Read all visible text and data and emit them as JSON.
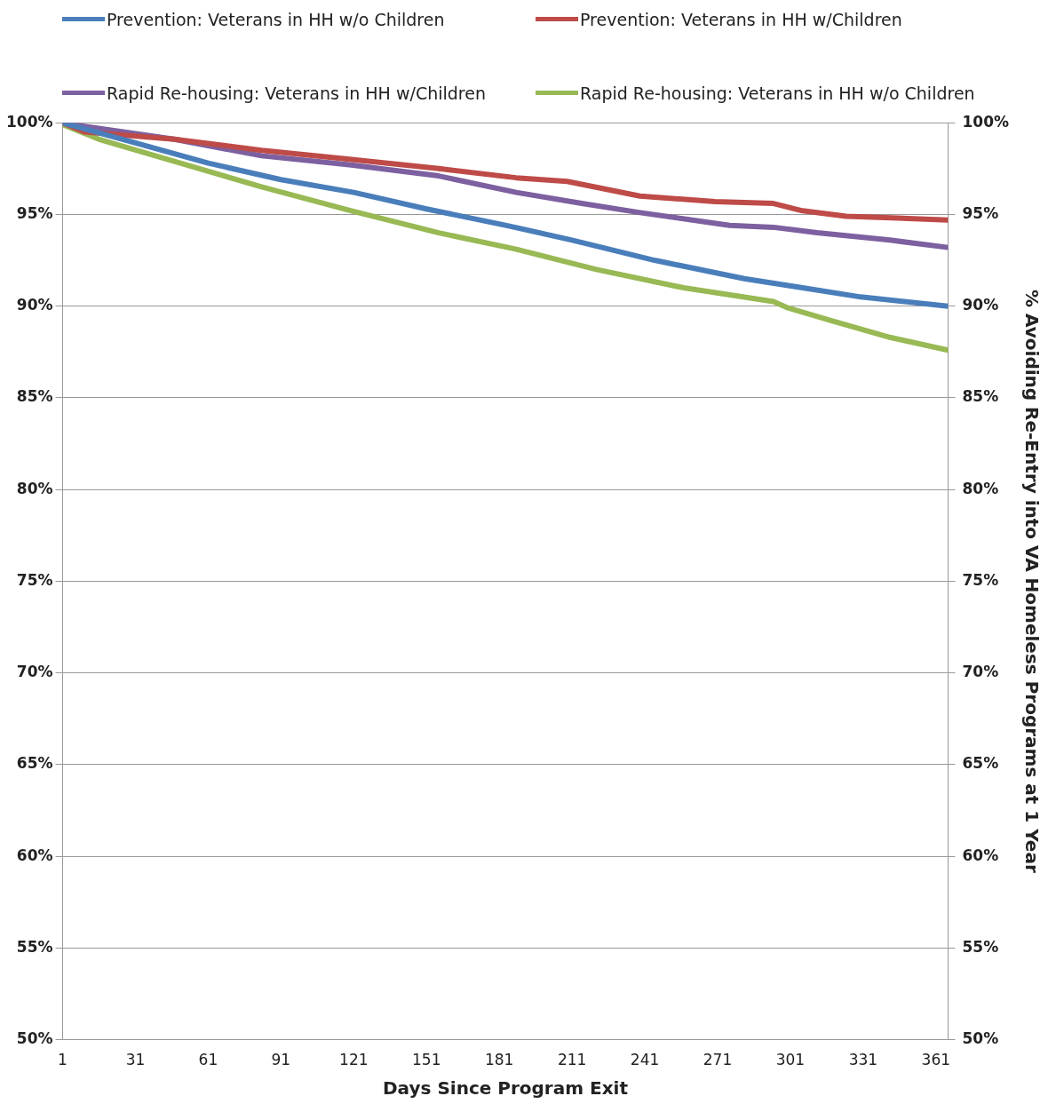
{
  "chart_data": {
    "type": "line",
    "xlabel": "Days Since Program Exit",
    "y2label": "% Avoiding Re-Entry into VA Homeless Programs at 1 Year",
    "legend": "top",
    "marker": "none",
    "line_style": "solid",
    "grid": "y",
    "xlim": [
      1,
      366
    ],
    "xticks": [
      1,
      31,
      61,
      91,
      121,
      151,
      181,
      211,
      241,
      271,
      301,
      331,
      361
    ],
    "ylim": [
      50,
      100
    ],
    "yticks": [
      {
        "value": 50,
        "label": "50%"
      },
      {
        "value": 55,
        "label": "55%"
      },
      {
        "value": 60,
        "label": "60%"
      },
      {
        "value": 65,
        "label": "65%"
      },
      {
        "value": 70,
        "label": "70%"
      },
      {
        "value": 75,
        "label": "75%"
      },
      {
        "value": 80,
        "label": "80%"
      },
      {
        "value": 85,
        "label": "85%"
      },
      {
        "value": 90,
        "label": "90%"
      },
      {
        "value": 95,
        "label": "95%"
      },
      {
        "value": 100,
        "label": "100%"
      }
    ],
    "y2lim": [
      50,
      100
    ],
    "y2ticks": [
      {
        "value": 50,
        "label": "50%"
      },
      {
        "value": 55,
        "label": "55%"
      },
      {
        "value": 60,
        "label": "60%"
      },
      {
        "value": 65,
        "label": "65%"
      },
      {
        "value": 70,
        "label": "70%"
      },
      {
        "value": 75,
        "label": "75%"
      },
      {
        "value": 80,
        "label": "80%"
      },
      {
        "value": 85,
        "label": "85%"
      },
      {
        "value": 90,
        "label": "90%"
      },
      {
        "value": 95,
        "label": "95%"
      },
      {
        "value": 100,
        "label": "100%"
      }
    ],
    "series": [
      {
        "name": "Prevention: Veterans in HH w/o Children",
        "color": "#4a7ebb",
        "x": [
          1,
          31,
          61,
          91,
          121,
          151,
          184,
          211,
          245,
          282,
          306,
          330,
          366
        ],
        "values": [
          100,
          98.9,
          97.8,
          96.9,
          96.2,
          95.3,
          94.4,
          93.6,
          92.5,
          91.5,
          91.0,
          90.5,
          90.0
        ]
      },
      {
        "name": "Prevention: Veterans in HH w/Children",
        "color": "#be4b48",
        "x": [
          1,
          10,
          47,
          83,
          120,
          156,
          188,
          209,
          239,
          270,
          294,
          306,
          324,
          366
        ],
        "values": [
          100,
          99.5,
          99.1,
          98.5,
          98.0,
          97.5,
          97.0,
          96.8,
          96.0,
          95.7,
          95.6,
          95.2,
          94.9,
          94.7
        ]
      },
      {
        "name": "Rapid Re-housing: Veterans in HH w/Children",
        "color": "#7d60a0",
        "x": [
          1,
          10,
          47,
          83,
          120,
          156,
          188,
          215,
          239,
          276,
          294,
          312,
          342,
          366
        ],
        "values": [
          100,
          99.8,
          99.1,
          98.2,
          97.7,
          97.1,
          96.2,
          95.6,
          95.1,
          94.4,
          94.3,
          94.0,
          93.6,
          93.2
        ]
      },
      {
        "name": "Rapid Re-housing: Veterans in HH w/o Children",
        "color": "#98b954",
        "x": [
          1,
          16,
          47,
          83,
          120,
          156,
          188,
          221,
          257,
          294,
          300,
          318,
          342,
          366
        ],
        "values": [
          99.9,
          99.1,
          97.9,
          96.5,
          95.2,
          94.0,
          93.1,
          92.0,
          91.0,
          90.25,
          89.9,
          89.2,
          88.3,
          87.6
        ]
      }
    ]
  }
}
